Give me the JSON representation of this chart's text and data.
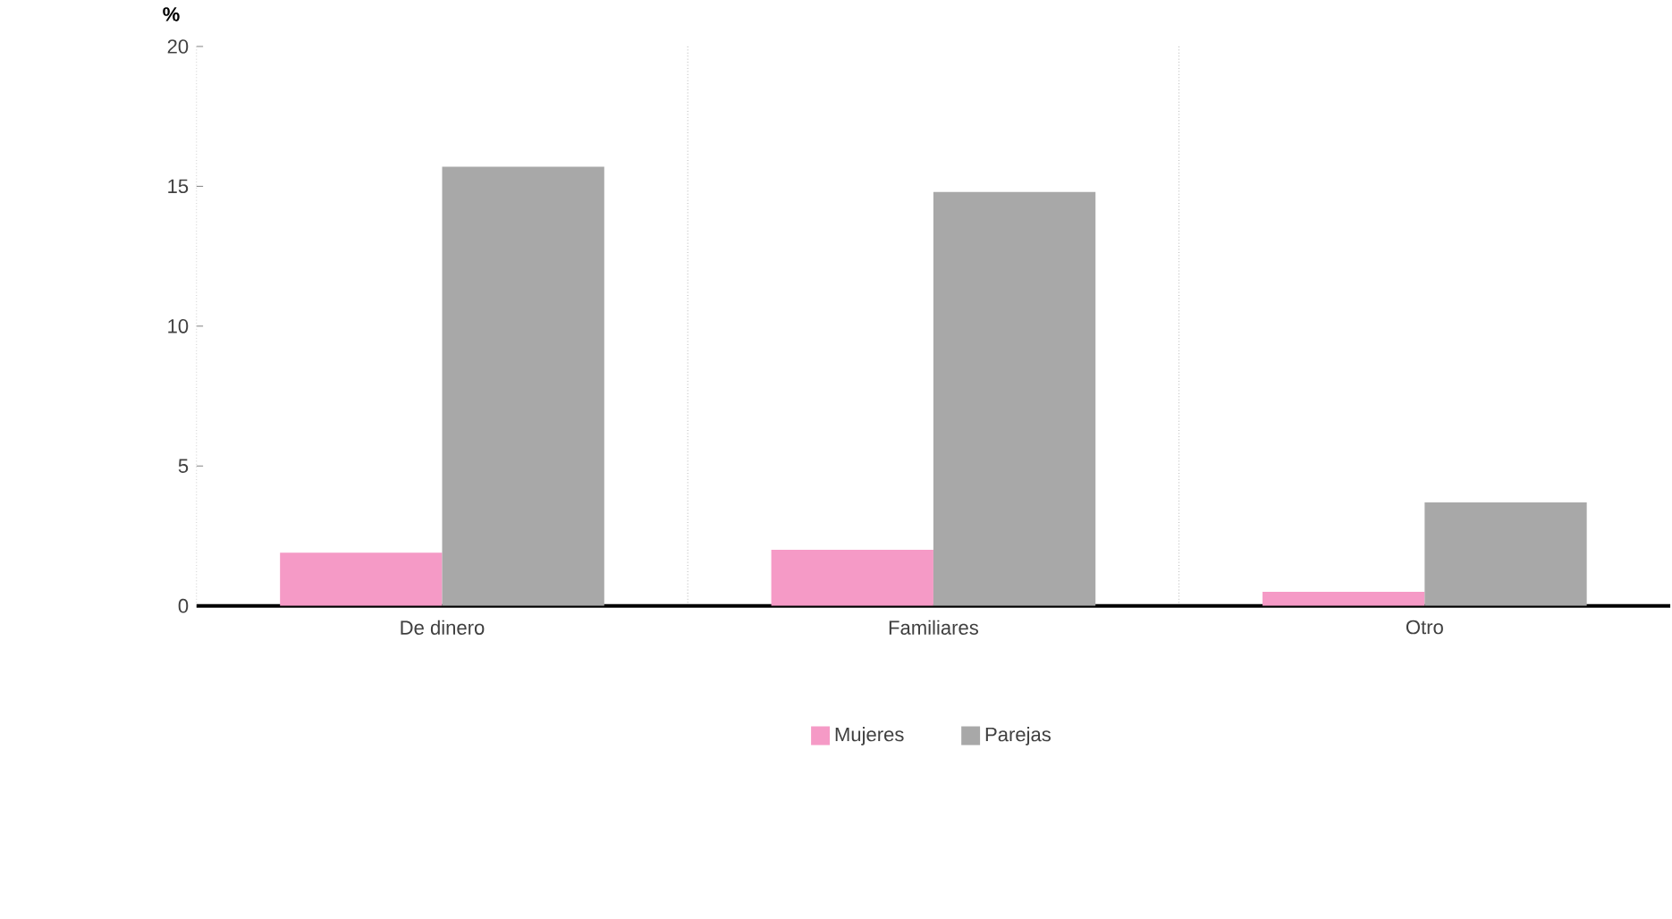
{
  "chart_data": {
    "type": "bar",
    "ylabel": "%",
    "categories": [
      "De dinero",
      "Familiares",
      "Otro"
    ],
    "series": [
      {
        "name": "Mujeres",
        "color": "#f59ac6",
        "values": [
          1.9,
          2.0,
          0.5
        ]
      },
      {
        "name": "Parejas",
        "color": "#a8a8a8",
        "values": [
          15.7,
          14.8,
          3.7
        ]
      }
    ],
    "ylim": [
      0,
      20
    ],
    "yticks": [
      0,
      5,
      10,
      15,
      20
    ],
    "legend": "bottom"
  }
}
